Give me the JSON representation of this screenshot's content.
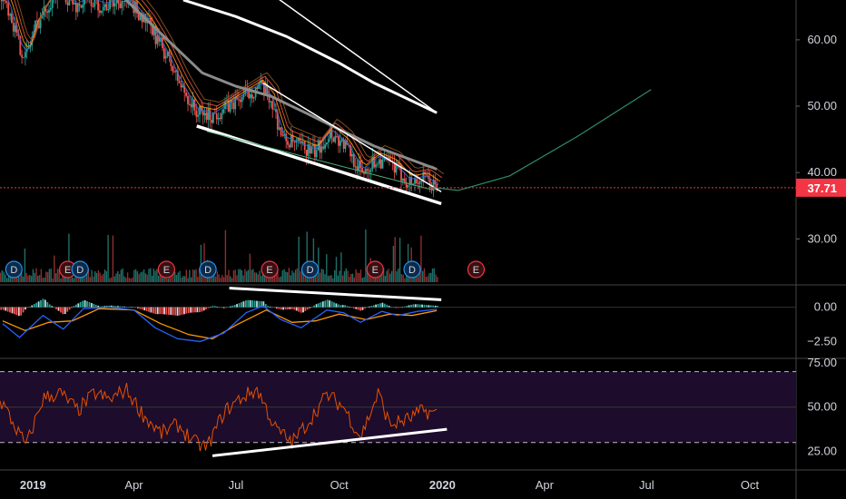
{
  "chart_data": [
    {
      "type": "candlestick",
      "panel": "price",
      "title": "",
      "x_ticks": [
        "2019",
        "Apr",
        "Jul",
        "Oct",
        "2020",
        "Apr",
        "Jul",
        "Oct"
      ],
      "y_ticks": [
        "60.00",
        "50.00",
        "40.00",
        "30.00"
      ],
      "ylim": [
        23.2,
        66
      ],
      "last_price": "37.71",
      "colors": {
        "up": "#26a69a",
        "down": "#ef5350",
        "last_price": "#f23645"
      },
      "close_path": [
        [
          "2018-12-05",
          67
        ],
        [
          "2018-12-12",
          64
        ],
        [
          "2018-12-20",
          59
        ],
        [
          "2018-12-26",
          57.5
        ],
        [
          "2019-01-03",
          62
        ],
        [
          "2019-01-10",
          64
        ],
        [
          "2019-01-17",
          66
        ],
        [
          "2019-01-28",
          67
        ],
        [
          "2019-02-08",
          65
        ],
        [
          "2019-02-20",
          66
        ],
        [
          "2019-03-05",
          65
        ],
        [
          "2019-03-20",
          66
        ],
        [
          "2019-04-01",
          65
        ],
        [
          "2019-04-15",
          62
        ],
        [
          "2019-04-29",
          58
        ],
        [
          "2019-05-13",
          53
        ],
        [
          "2019-05-27",
          49
        ],
        [
          "2019-06-10",
          48.5
        ],
        [
          "2019-06-24",
          50
        ],
        [
          "2019-07-08",
          51.5
        ],
        [
          "2019-07-22",
          53
        ],
        [
          "2019-08-01",
          51
        ],
        [
          "2019-08-12",
          45
        ],
        [
          "2019-08-26",
          44
        ],
        [
          "2019-09-09",
          43
        ],
        [
          "2019-09-23",
          46
        ],
        [
          "2019-10-07",
          44
        ],
        [
          "2019-10-21",
          40
        ],
        [
          "2019-11-04",
          42
        ],
        [
          "2019-11-18",
          41
        ],
        [
          "2019-12-02",
          38.5
        ],
        [
          "2019-12-16",
          39
        ],
        [
          "2019-12-27",
          37.71
        ]
      ],
      "moving_average_gray": [
        [
          "2019-03-25",
          66
        ],
        [
          "2019-05-01",
          60
        ],
        [
          "2019-06-01",
          55
        ],
        [
          "2019-07-01",
          53
        ],
        [
          "2019-08-01",
          51.5
        ],
        [
          "2019-09-01",
          49
        ],
        [
          "2019-10-01",
          46.5
        ],
        [
          "2019-11-01",
          44
        ],
        [
          "2019-12-27",
          40.5
        ]
      ],
      "moving_average_white": [
        [
          "2019-05-15",
          66
        ],
        [
          "2019-07-01",
          63.5
        ],
        [
          "2019-08-15",
          60.5
        ],
        [
          "2019-10-01",
          56.5
        ],
        [
          "2019-11-01",
          53.5
        ],
        [
          "2019-12-27",
          49
        ]
      ],
      "trendlines": [
        {
          "from": [
            "2019-05-27",
            47
          ],
          "to": [
            "2019-12-31",
            35.3
          ]
        },
        {
          "from": [
            "2019-07-25",
            53.5
          ],
          "to": [
            "2019-12-31",
            37.1
          ]
        },
        {
          "from": [
            "2019-08-01",
            67
          ],
          "to": [
            "2019-12-27",
            49
          ]
        }
      ],
      "projection_curve": [
        [
          "2019-12-20",
          37.8
        ],
        [
          "2020-01-15",
          37.3
        ],
        [
          "2020-03-01",
          39.5
        ],
        [
          "2020-05-01",
          45.5
        ],
        [
          "2020-07-05",
          52.5
        ]
      ],
      "volume_bars": true,
      "event_markers": [
        {
          "date": "2018-12-15",
          "label": "D",
          "kind": "dividend"
        },
        {
          "date": "2019-02-01",
          "label": "E",
          "kind": "earnings"
        },
        {
          "date": "2019-02-12",
          "label": "D",
          "kind": "dividend"
        },
        {
          "date": "2019-04-30",
          "label": "E",
          "kind": "earnings"
        },
        {
          "date": "2019-06-06",
          "label": "D",
          "kind": "dividend"
        },
        {
          "date": "2019-07-31",
          "label": "E",
          "kind": "earnings"
        },
        {
          "date": "2019-09-05",
          "label": "D",
          "kind": "dividend"
        },
        {
          "date": "2019-11-02",
          "label": "E",
          "kind": "earnings"
        },
        {
          "date": "2019-12-05",
          "label": "D",
          "kind": "dividend"
        },
        {
          "date": "2020-01-31",
          "label": "E",
          "kind": "earnings"
        }
      ]
    },
    {
      "type": "macd",
      "panel": "macd",
      "y_ticks": [
        "0.00",
        "−2.50"
      ],
      "ylim": [
        -3.6,
        1.5
      ],
      "colors": {
        "macd": "#2962ff",
        "signal": "#ff9800"
      },
      "macd": [
        [
          "2018-12-05",
          -1.2
        ],
        [
          "2018-12-20",
          -2.2
        ],
        [
          "2019-01-10",
          -0.6
        ],
        [
          "2019-01-28",
          -1.6
        ],
        [
          "2019-02-15",
          -0.1
        ],
        [
          "2019-03-10",
          0.0
        ],
        [
          "2019-04-01",
          -0.2
        ],
        [
          "2019-04-20",
          -1.5
        ],
        [
          "2019-05-10",
          -2.3
        ],
        [
          "2019-05-30",
          -2.5
        ],
        [
          "2019-06-20",
          -1.9
        ],
        [
          "2019-07-10",
          -0.4
        ],
        [
          "2019-07-25",
          0.1
        ],
        [
          "2019-08-10",
          -0.9
        ],
        [
          "2019-08-28",
          -1.5
        ],
        [
          "2019-09-20",
          -0.2
        ],
        [
          "2019-10-05",
          -0.4
        ],
        [
          "2019-10-20",
          -1.1
        ],
        [
          "2019-11-08",
          -0.3
        ],
        [
          "2019-11-22",
          -0.6
        ],
        [
          "2019-12-10",
          -0.3
        ],
        [
          "2019-12-27",
          -0.15
        ]
      ],
      "signal": [
        [
          "2018-12-05",
          -1.0
        ],
        [
          "2018-12-25",
          -1.7
        ],
        [
          "2019-01-15",
          -1.1
        ],
        [
          "2019-02-05",
          -1.0
        ],
        [
          "2019-03-01",
          -0.1
        ],
        [
          "2019-04-01",
          -0.2
        ],
        [
          "2019-04-25",
          -1.2
        ],
        [
          "2019-05-20",
          -2.0
        ],
        [
          "2019-06-10",
          -2.3
        ],
        [
          "2019-07-01",
          -1.3
        ],
        [
          "2019-07-28",
          -0.2
        ],
        [
          "2019-08-20",
          -1.1
        ],
        [
          "2019-09-10",
          -1.0
        ],
        [
          "2019-10-01",
          -0.5
        ],
        [
          "2019-10-25",
          -0.9
        ],
        [
          "2019-11-15",
          -0.5
        ],
        [
          "2019-12-05",
          -0.6
        ],
        [
          "2019-12-27",
          -0.25
        ]
      ],
      "trendline": {
        "from": [
          "2019-06-25",
          1.4
        ],
        "to": [
          "2019-12-31",
          0.55
        ]
      }
    },
    {
      "type": "rsi",
      "panel": "rsi",
      "y_ticks": [
        "75.00",
        "50.00",
        "25.00"
      ],
      "ylim": [
        15,
        77
      ],
      "band": [
        30,
        70
      ],
      "colors": {
        "line": "#e65100",
        "band": "#1d0c2c"
      },
      "rsi": [
        [
          "2018-12-05",
          52
        ],
        [
          "2018-12-15",
          40
        ],
        [
          "2018-12-26",
          28
        ],
        [
          "2019-01-10",
          55
        ],
        [
          "2019-01-25",
          58
        ],
        [
          "2019-02-10",
          48
        ],
        [
          "2019-02-25",
          58
        ],
        [
          "2019-03-10",
          54
        ],
        [
          "2019-03-25",
          60
        ],
        [
          "2019-04-10",
          45
        ],
        [
          "2019-04-25",
          35
        ],
        [
          "2019-05-10",
          40
        ],
        [
          "2019-05-25",
          30
        ],
        [
          "2019-06-05",
          27
        ],
        [
          "2019-06-20",
          47
        ],
        [
          "2019-07-05",
          55
        ],
        [
          "2019-07-20",
          60
        ],
        [
          "2019-08-05",
          38
        ],
        [
          "2019-08-20",
          30
        ],
        [
          "2019-09-05",
          43
        ],
        [
          "2019-09-20",
          57
        ],
        [
          "2019-10-05",
          50
        ],
        [
          "2019-10-20",
          33
        ],
        [
          "2019-11-05",
          58
        ],
        [
          "2019-11-15",
          40
        ],
        [
          "2019-12-01",
          43
        ],
        [
          "2019-12-15",
          48
        ],
        [
          "2019-12-27",
          46
        ]
      ],
      "trendline": {
        "from": [
          "2019-06-10",
          22.5
        ],
        "to": [
          "2020-01-05",
          37.5
        ]
      }
    }
  ]
}
